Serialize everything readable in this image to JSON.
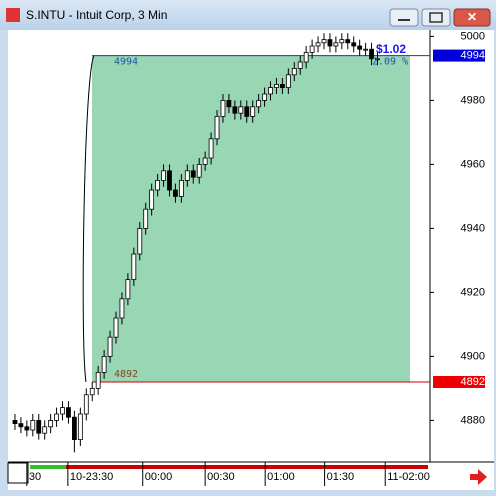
{
  "window_title": "S.INTU - Intuit Corp, 3 Min",
  "chart_data": {
    "type": "candlestick",
    "open": [
      4880,
      4879,
      4878,
      4877,
      4880,
      4876,
      4878,
      4880,
      4882,
      4884,
      4881,
      4874,
      4882,
      4888,
      4890,
      4895,
      4900,
      4906,
      4912,
      4918,
      4924,
      4932,
      4940,
      4946,
      4952,
      4955,
      4958,
      4952,
      4950,
      4955,
      4958,
      4956,
      4960,
      4962,
      4968,
      4975,
      4980,
      4978,
      4976,
      4978,
      4975,
      4978,
      4980,
      4982,
      4984,
      4985,
      4984,
      4988,
      4990,
      4992,
      4995,
      4997,
      4998,
      4999,
      4997,
      4998,
      4999,
      4998,
      4997,
      4996,
      4996,
      4993
    ],
    "high": [
      4882,
      4881,
      4880,
      4882,
      4882,
      4880,
      4882,
      4884,
      4886,
      4886,
      4883,
      4884,
      4890,
      4892,
      4897,
      4902,
      4908,
      4914,
      4920,
      4926,
      4934,
      4942,
      4948,
      4954,
      4957,
      4960,
      4960,
      4954,
      4957,
      4960,
      4960,
      4962,
      4964,
      4970,
      4977,
      4982,
      4982,
      4980,
      4980,
      4980,
      4980,
      4982,
      4984,
      4986,
      4987,
      4987,
      4990,
      4992,
      4994,
      4997,
      4999,
      5000,
      5001,
      5001,
      5000,
      5001,
      5001,
      5000,
      4999,
      4998,
      4998,
      4995
    ],
    "low": [
      4877,
      4876,
      4875,
      4875,
      4874,
      4874,
      4876,
      4878,
      4880,
      4879,
      4870,
      4872,
      4880,
      4886,
      4888,
      4893,
      4898,
      4904,
      4910,
      4916,
      4922,
      4930,
      4938,
      4944,
      4950,
      4953,
      4950,
      4948,
      4948,
      4953,
      4954,
      4954,
      4958,
      4960,
      4966,
      4973,
      4976,
      4974,
      4974,
      4973,
      4973,
      4976,
      4978,
      4980,
      4982,
      4982,
      4982,
      4986,
      4988,
      4990,
      4993,
      4995,
      4996,
      4995,
      4995,
      4996,
      4996,
      4995,
      4994,
      4994,
      4991,
      4991
    ],
    "close": [
      4879,
      4878,
      4877,
      4880,
      4876,
      4878,
      4880,
      4882,
      4884,
      4881,
      4874,
      4882,
      4888,
      4890,
      4895,
      4900,
      4906,
      4912,
      4918,
      4924,
      4932,
      4940,
      4946,
      4952,
      4955,
      4958,
      4952,
      4950,
      4955,
      4958,
      4956,
      4960,
      4962,
      4968,
      4975,
      4980,
      4978,
      4976,
      4978,
      4975,
      4978,
      4980,
      4982,
      4984,
      4985,
      4984,
      4988,
      4990,
      4992,
      4995,
      4997,
      4998,
      4999,
      4997,
      4998,
      4999,
      4998,
      4997,
      4996,
      4996,
      4993,
      4993
    ],
    "ylim": [
      4867,
      5002
    ],
    "yticks": [
      4880,
      4900,
      4920,
      4940,
      4960,
      4980,
      5000
    ],
    "xlim": [
      0,
      70
    ],
    "xticks": [
      {
        "value": 2.5,
        "label": "30"
      },
      {
        "value": 9.4,
        "label": "10-23:30"
      },
      {
        "value": 22,
        "label": "00:00"
      },
      {
        "value": 32.5,
        "label": "00:30"
      },
      {
        "value": 42.6,
        "label": "01:00"
      },
      {
        "value": 52.6,
        "label": "01:30"
      },
      {
        "value": 62.8,
        "label": "11-02:00"
      }
    ],
    "range": {
      "high": 4994,
      "low": 4892,
      "change": "$1.02",
      "change_pct": "2.09 %"
    }
  }
}
